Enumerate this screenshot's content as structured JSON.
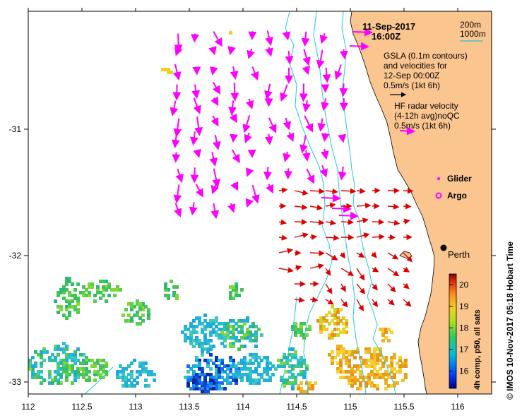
{
  "title": {
    "date": "11-Sep-2017",
    "time": "16:00Z"
  },
  "depth_legend": {
    "shallow": "200m",
    "deep": "1000m"
  },
  "gsla_note": {
    "line1": "GSLA (0.1m contours)",
    "line2": "and velocities for",
    "line3": "12-Sep 00:00Z",
    "scale": "0.5m/s (1kt 6h)"
  },
  "radar_note": {
    "line1": "HF radar velocity",
    "line2": "(4-12h avg)noQC",
    "scale": "0.5m/s (1kt 6h)"
  },
  "symbols": {
    "glider": "Glider",
    "argo": "Argo"
  },
  "city": {
    "name": "Perth",
    "lon": 115.86,
    "lat": -31.95
  },
  "axes": {
    "x_ticks": [
      "112",
      "112.5",
      "113",
      "113.5",
      "114",
      "114.5",
      "115",
      "115.5",
      "116"
    ],
    "y_ticks": [
      "-31",
      "-32",
      "-33"
    ],
    "xlim": [
      112,
      116.3
    ],
    "ylim": [
      -33.11,
      -30.05
    ]
  },
  "colorbar": {
    "label": "4h comp, p50, all sats",
    "ticks": [
      "20",
      "19",
      "18",
      "17",
      "16"
    ],
    "range": [
      15.2,
      20.5
    ]
  },
  "credit": "© IMOS 10-Nov-2017 05:18 Hobart Time",
  "colors": {
    "land": "#fbc590",
    "radar_arrows": "#ff00ff",
    "gsla_arrows": "#dd0000",
    "isobath": "#22c8dc"
  }
}
